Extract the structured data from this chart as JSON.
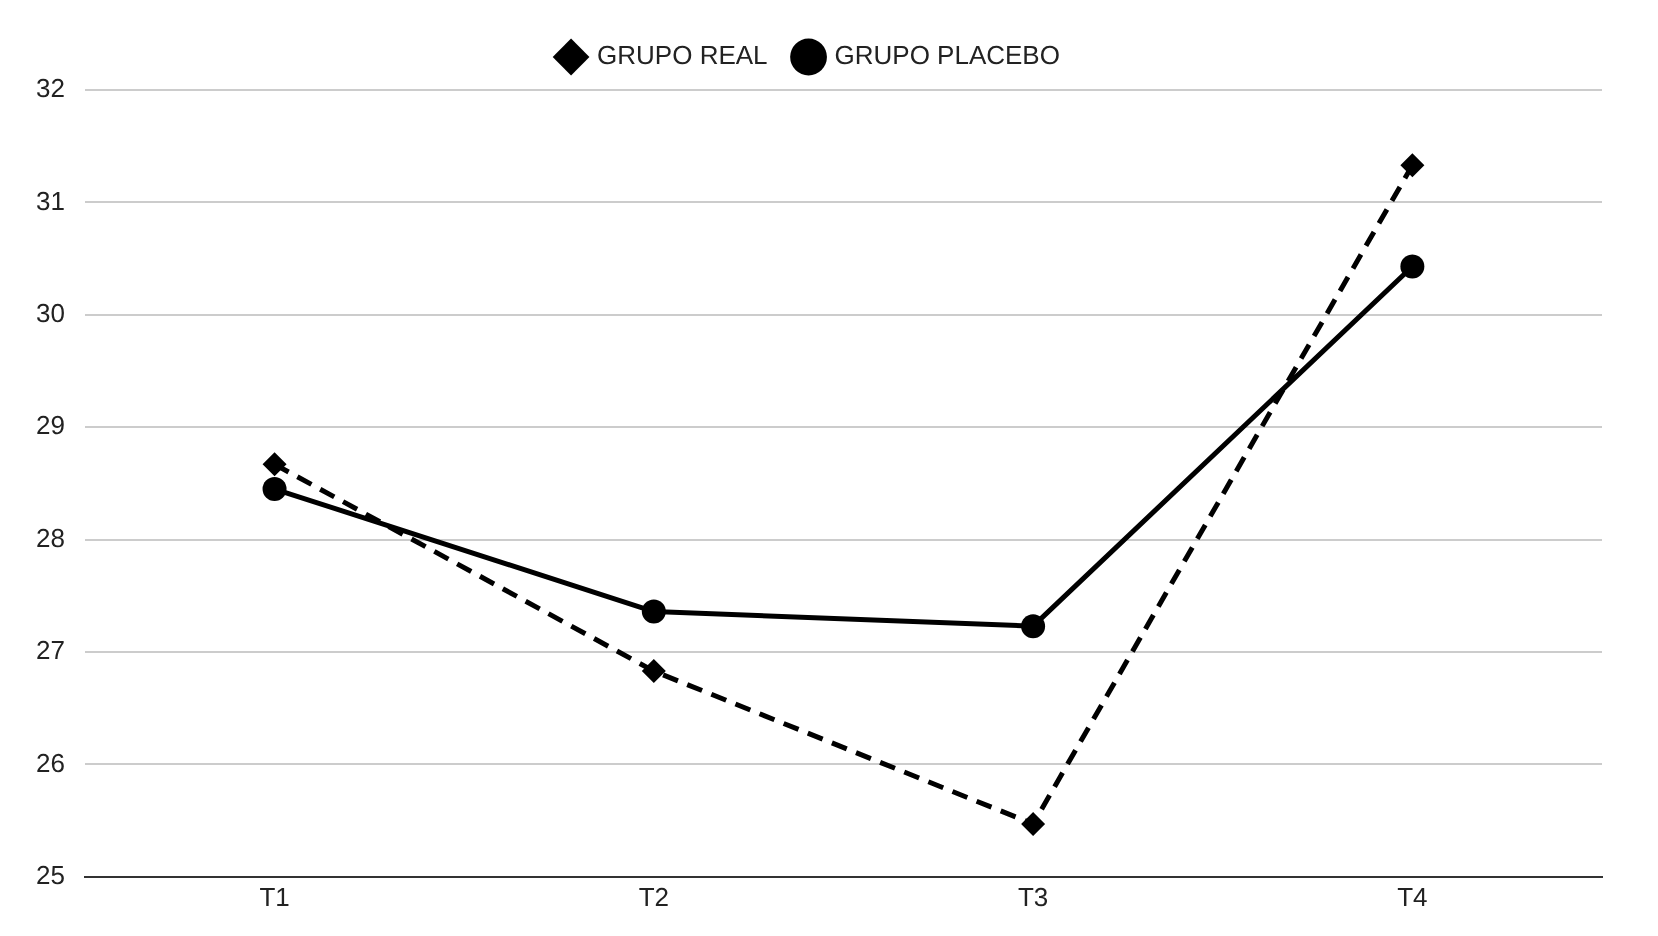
{
  "chart_data": {
    "type": "line",
    "categories": [
      "T1",
      "T2",
      "T3",
      "T4"
    ],
    "series": [
      {
        "name": "GRUPO REAL",
        "color": "#000000",
        "values": [
          28.67,
          26.83,
          25.47,
          31.33
        ],
        "marker": "diamond",
        "line_style": "dashed"
      },
      {
        "name": "GRUPO PLACEBO",
        "color": "#000000",
        "values": [
          28.45,
          27.36,
          27.23,
          30.43
        ],
        "marker": "circle",
        "line_style": "solid"
      }
    ],
    "ylim": [
      25,
      32
    ],
    "yticks": [
      25,
      26,
      27,
      28,
      29,
      30,
      31,
      32
    ],
    "grid": "y",
    "legend": "top"
  }
}
